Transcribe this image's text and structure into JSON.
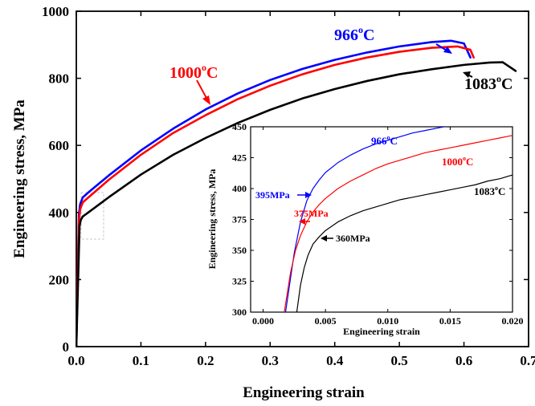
{
  "chart_data": [
    {
      "type": "line",
      "xlabel": "Engineering strain",
      "ylabel": "Engineering stress, MPa",
      "xlim": [
        0.0,
        0.7
      ],
      "ylim": [
        0,
        1000
      ],
      "xticks": [
        "0.0",
        "0.1",
        "0.2",
        "0.3",
        "0.4",
        "0.5",
        "0.6",
        "0.7"
      ],
      "yticks": [
        "0",
        "200",
        "400",
        "600",
        "800",
        "1000"
      ],
      "series": [
        {
          "name": "966",
          "label": "966°C",
          "color": "#0000ff",
          "x": [
            0,
            0.004,
            0.006,
            0.01,
            0.02,
            0.05,
            0.1,
            0.15,
            0.2,
            0.25,
            0.3,
            0.35,
            0.4,
            0.45,
            0.5,
            0.55,
            0.58,
            0.6,
            0.61
          ],
          "y": [
            0,
            395,
            425,
            445,
            462,
            510,
            585,
            650,
            707,
            755,
            795,
            828,
            855,
            877,
            895,
            908,
            912,
            904,
            862
          ]
        },
        {
          "name": "1000",
          "label": "1000°C",
          "color": "#ff0000",
          "x": [
            0,
            0.004,
            0.006,
            0.01,
            0.02,
            0.05,
            0.1,
            0.15,
            0.2,
            0.25,
            0.3,
            0.35,
            0.4,
            0.45,
            0.5,
            0.55,
            0.59,
            0.61,
            0.615
          ],
          "y": [
            0,
            375,
            410,
            430,
            447,
            497,
            572,
            637,
            690,
            738,
            778,
            812,
            840,
            862,
            879,
            891,
            895,
            885,
            862
          ]
        },
        {
          "name": "1083",
          "label": "1083°C",
          "color": "#000000",
          "x": [
            0,
            0.005,
            0.007,
            0.01,
            0.02,
            0.05,
            0.1,
            0.15,
            0.2,
            0.25,
            0.3,
            0.35,
            0.4,
            0.45,
            0.5,
            0.55,
            0.6,
            0.64,
            0.66,
            0.68
          ],
          "y": [
            0,
            360,
            378,
            388,
            402,
            445,
            513,
            572,
            622,
            667,
            706,
            740,
            768,
            792,
            812,
            827,
            840,
            847,
            848,
            822
          ]
        }
      ]
    },
    {
      "type": "line",
      "xlabel": "Engineering strain",
      "ylabel": "Engineering stress, MPa",
      "xlim": [
        -0.001,
        0.02
      ],
      "ylim": [
        300,
        450
      ],
      "xticks": [
        "0.000",
        "0.005",
        "0.010",
        "0.015",
        "0.020"
      ],
      "yticks": [
        "300",
        "325",
        "350",
        "375",
        "400",
        "425",
        "450"
      ],
      "series": [
        {
          "name": "966",
          "label": "966°C",
          "color": "#0000ff",
          "x": [
            0.0018,
            0.0025,
            0.003,
            0.0035,
            0.004,
            0.0045,
            0.005,
            0.006,
            0.007,
            0.008,
            0.009,
            0.01,
            0.011,
            0.012,
            0.013,
            0.014,
            0.015
          ],
          "y": [
            300,
            348,
            373,
            390,
            400,
            407,
            413,
            421,
            427,
            432,
            436,
            439,
            442,
            445,
            447,
            449,
            451
          ]
        },
        {
          "name": "1000",
          "label": "1000°C",
          "color": "#ff0000",
          "x": [
            0.0017,
            0.0022,
            0.0026,
            0.003,
            0.0035,
            0.004,
            0.0045,
            0.005,
            0.006,
            0.007,
            0.008,
            0.009,
            0.01,
            0.011,
            0.012,
            0.013,
            0.014,
            0.015,
            0.016,
            0.017,
            0.018,
            0.019,
            0.02
          ],
          "y": [
            300,
            332,
            350,
            362,
            373,
            381,
            387,
            392,
            400,
            406,
            411,
            416,
            420,
            423,
            426,
            429,
            431,
            433,
            435,
            437,
            439,
            441,
            443
          ]
        },
        {
          "name": "1083",
          "label": "1083°C",
          "color": "#000000",
          "x": [
            0.0027,
            0.003,
            0.0033,
            0.0036,
            0.004,
            0.0045,
            0.005,
            0.006,
            0.007,
            0.008,
            0.009,
            0.01,
            0.011,
            0.012,
            0.013,
            0.014,
            0.015,
            0.016,
            0.017,
            0.018,
            0.019,
            0.02
          ],
          "y": [
            300,
            322,
            336,
            346,
            355,
            361,
            366,
            373,
            378,
            382,
            385,
            388,
            391,
            393,
            395,
            397,
            399,
            401,
            403,
            406,
            408,
            411
          ]
        }
      ],
      "annotations": [
        {
          "text": "395MPa",
          "color": "#0000ff",
          "x": 0.0038,
          "y": 398
        },
        {
          "text": "375MPa",
          "color": "#ff0000",
          "x": 0.0033,
          "y": 371
        },
        {
          "text": "360MPa",
          "color": "#000000",
          "x": 0.004,
          "y": 359
        }
      ]
    }
  ],
  "temp_labels": {
    "t966": {
      "num": "966",
      "sup": "o",
      "unit": "C"
    },
    "t1000": {
      "num": "1000",
      "sup": "o",
      "unit": "C"
    },
    "t1083": {
      "num": "1083",
      "sup": "o",
      "unit": "C"
    }
  }
}
